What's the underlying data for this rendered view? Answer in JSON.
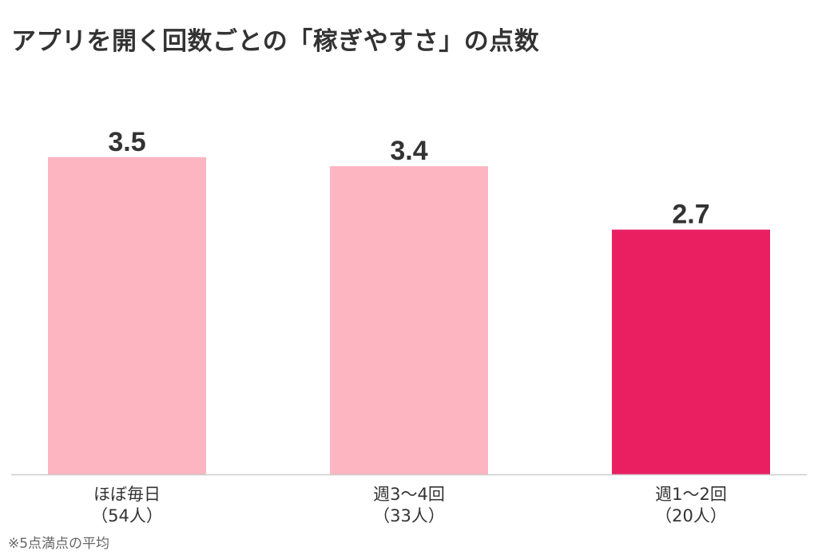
{
  "chart_data": {
    "type": "bar",
    "title": "アプリを開く回数ごとの「稼ぎやすさ」の点数",
    "xlabel": "",
    "ylabel": "",
    "ylim": [
      0,
      5
    ],
    "grid": false,
    "legend": "none",
    "categories": [
      [
        "ほぼ毎日",
        "（54人）"
      ],
      [
        "週3〜4回",
        "（33人）"
      ],
      [
        "週1〜2回",
        "（20人）"
      ]
    ],
    "values": [
      3.5,
      3.4,
      2.7
    ],
    "data_labels": [
      "3.5",
      "3.4",
      "2.7"
    ],
    "bar_colors": [
      "#FDB5C1",
      "#FDB5C1",
      "#E91F62"
    ],
    "baseline_color": "#CCCCCC",
    "footnote": "※5点満点の平均"
  }
}
